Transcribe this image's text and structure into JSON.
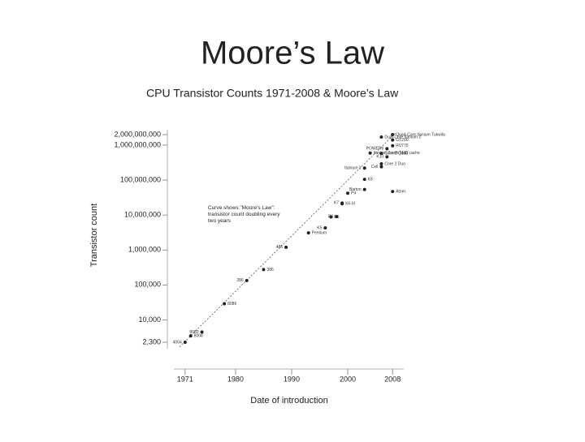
{
  "slide_title": "Moore’s Law",
  "chart_data": {
    "type": "scatter",
    "title": "CPU Transistor Counts 1971-2008 & Moore’s Law",
    "x_label": "Date of introduction",
    "y_label": "Transistor count",
    "annotation": "Curve shows \"Moore's Law\": transistor count doubling every two years",
    "log_y": true,
    "color": "#222222",
    "xlim": [
      1969,
      2010
    ],
    "xticks": [
      1971,
      1980,
      1990,
      2000,
      2008
    ],
    "ylim": [
      1500,
      2750000000
    ],
    "yticks": [
      {
        "value": 2300,
        "label": "2,300"
      },
      {
        "value": 10000,
        "label": "10,000"
      },
      {
        "value": 100000,
        "label": "100,000"
      },
      {
        "value": 1000000,
        "label": "1,000,000"
      },
      {
        "value": 10000000,
        "label": "10,000,000"
      },
      {
        "value": 100000000,
        "label": "100,000,000"
      },
      {
        "value": 1000000000,
        "label": "1,000,000,000"
      },
      {
        "value": 2000000000,
        "label": "2,000,000,000"
      }
    ],
    "trend": {
      "x": [
        1970,
        2008.5
      ],
      "values": [
        1700,
        2200000000
      ]
    },
    "points": {
      "labels": [
        "4004",
        "8008",
        "8080",
        "8086",
        "286",
        "386",
        "486",
        "Pentium",
        "K5",
        "K6",
        "PII",
        "K6-III",
        "K7",
        "P4",
        "Barton",
        "K8",
        "Itanium 2",
        "Core 2 Duo",
        "Cell",
        "Core 2 Quad",
        "K10",
        "Itanium 2 with 9MB cache",
        "POWER6",
        "Dual-Core Itanium 2",
        "Quad-Core Itanium Tukwila",
        "GT200",
        "RV770",
        "Atom"
      ],
      "x": [
        1971,
        1972,
        1974,
        1978,
        1982,
        1985,
        1989,
        1993,
        1996,
        1997,
        1998,
        1999,
        1999,
        2000,
        2003,
        2003,
        2003,
        2006,
        2006,
        2006,
        2007,
        2004,
        2007,
        2006,
        2008,
        2008,
        2008,
        2008
      ],
      "values": [
        2300,
        3500,
        4500,
        29000,
        134000,
        275000,
        1200000,
        3100000,
        4300000,
        8800000,
        9000000,
        21000000,
        22000000,
        42000000,
        54000000,
        105000000,
        220000000,
        291000000,
        241000000,
        582000000,
        463000000,
        592000000,
        789000000,
        1700000000,
        2000000000,
        1400000000,
        956000000,
        47000000
      ]
    }
  }
}
